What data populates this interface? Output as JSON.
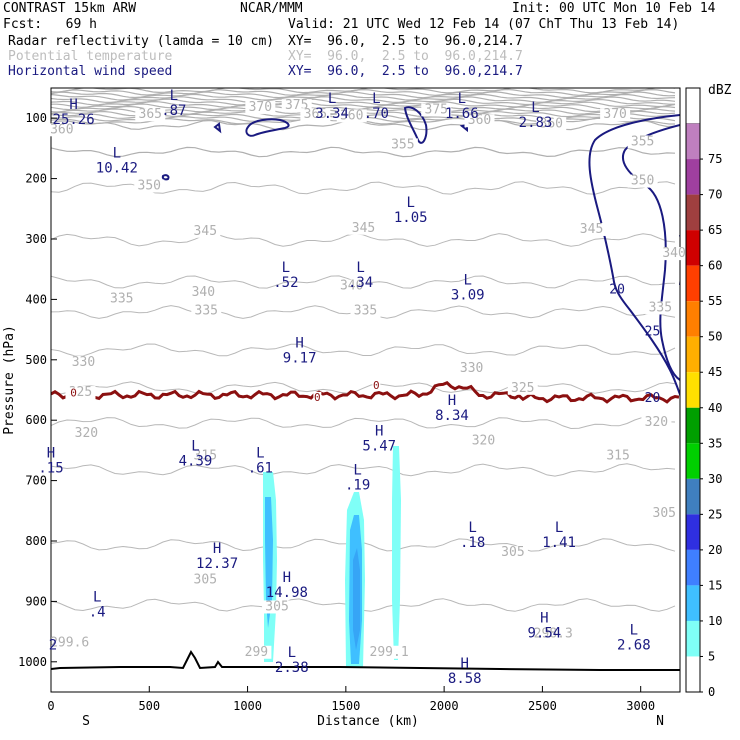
{
  "header": {
    "model": "CONTRAST 15km ARW",
    "org": "NCAR/MMM",
    "init": "Init: 00 UTC Mon 10 Feb 14",
    "fcst": "Fcst:   69 h",
    "valid": "Valid: 21 UTC Wed 12 Feb 14 (07 ChT Thu 13 Feb 14)",
    "fields": [
      {
        "name": "Radar reflectivity (lamda = 10 cm)",
        "xy": "XY=  96.0,  2.5 to  96.0,214.7",
        "color": "#000000"
      },
      {
        "name": "Potential temperature",
        "xy": "XY=  96.0,  2.5 to  96.0,214.7",
        "color": "#bdbdbd"
      },
      {
        "name": "Horizontal wind speed",
        "xy": "XY=  96.0,  2.5 to  96.0,214.7",
        "color": "#1a1a80"
      }
    ]
  },
  "chart_data": {
    "type": "cross-section",
    "xlabel": "Distance (km)",
    "ylabel": "Pressure (hPa)",
    "xlim": [
      0,
      3200
    ],
    "ylim": [
      50,
      1050
    ],
    "xticks": [
      0,
      500,
      1000,
      1500,
      2000,
      2500,
      3000
    ],
    "yticks": [
      100,
      200,
      300,
      400,
      500,
      600,
      700,
      800,
      900,
      1000
    ],
    "x_end_labels": {
      "left": "S",
      "right": "N"
    },
    "colorbar": {
      "title": "dBZ",
      "levels": [
        0,
        5,
        10,
        15,
        20,
        25,
        30,
        35,
        40,
        45,
        50,
        55,
        60,
        65,
        70,
        75
      ],
      "colors": [
        "#ffffff",
        "#7ffff7",
        "#3fbfff",
        "#3f7fff",
        "#2f2fe0",
        "#3f7fbf",
        "#00cf00",
        "#009f00",
        "#ffdf00",
        "#ffaf00",
        "#ff7f00",
        "#ff3f00",
        "#cf0000",
        "#9f3f3f",
        "#9f3f9f",
        "#bf7fbf"
      ]
    },
    "theta_labels": [
      {
        "x": 55,
        "p": 125,
        "t": "360"
      },
      {
        "x": 505,
        "p": 100,
        "t": "365"
      },
      {
        "x": 1065,
        "p": 88,
        "t": "370"
      },
      {
        "x": 1250,
        "p": 85,
        "t": "375"
      },
      {
        "x": 1345,
        "p": 100,
        "t": "365"
      },
      {
        "x": 1530,
        "p": 102,
        "t": "360"
      },
      {
        "x": 1960,
        "p": 92,
        "t": "375"
      },
      {
        "x": 2180,
        "p": 110,
        "t": "360"
      },
      {
        "x": 2545,
        "p": 115,
        "t": "360"
      },
      {
        "x": 2870,
        "p": 100,
        "t": "370"
      },
      {
        "x": 1790,
        "p": 150,
        "t": "355"
      },
      {
        "x": 3010,
        "p": 145,
        "t": "355"
      },
      {
        "x": 500,
        "p": 218,
        "t": "350"
      },
      {
        "x": 3010,
        "p": 210,
        "t": "350"
      },
      {
        "x": 785,
        "p": 293,
        "t": "345"
      },
      {
        "x": 1590,
        "p": 288,
        "t": "345"
      },
      {
        "x": 2750,
        "p": 290,
        "t": "345"
      },
      {
        "x": 3170,
        "p": 330,
        "t": "340"
      },
      {
        "x": 775,
        "p": 394,
        "t": "340"
      },
      {
        "x": 1530,
        "p": 384,
        "t": "340"
      },
      {
        "x": 360,
        "p": 405,
        "t": "335"
      },
      {
        "x": 790,
        "p": 425,
        "t": "335"
      },
      {
        "x": 1600,
        "p": 425,
        "t": "335"
      },
      {
        "x": 3100,
        "p": 420,
        "t": "335"
      },
      {
        "x": 165,
        "p": 510,
        "t": "330"
      },
      {
        "x": 2140,
        "p": 520,
        "t": "330"
      },
      {
        "x": 150,
        "p": 560,
        "t": "325"
      },
      {
        "x": 2400,
        "p": 553,
        "t": "325"
      },
      {
        "x": 180,
        "p": 628,
        "t": "320"
      },
      {
        "x": 2200,
        "p": 640,
        "t": "320"
      },
      {
        "x": 3080,
        "p": 610,
        "t": "320"
      },
      {
        "x": 785,
        "p": 665,
        "t": "315"
      },
      {
        "x": 2885,
        "p": 665,
        "t": "315"
      },
      {
        "x": 3120,
        "p": 760,
        "t": "305"
      },
      {
        "x": 2350,
        "p": 825,
        "t": "305"
      },
      {
        "x": 785,
        "p": 870,
        "t": "305"
      },
      {
        "x": 1150,
        "p": 915,
        "t": "305"
      },
      {
        "x": 95,
        "p": 975,
        "t": "299.6"
      },
      {
        "x": 1045,
        "p": 990,
        "t": "299"
      },
      {
        "x": 1720,
        "p": 990,
        "t": "299.1"
      },
      {
        "x": 2555,
        "p": 960,
        "t": "298.3"
      }
    ],
    "wind_labels": [
      {
        "x": 2880,
        "p": 390,
        "t": "20"
      },
      {
        "x": 3060,
        "p": 460,
        "t": "25"
      },
      {
        "x": 3060,
        "p": 570,
        "t": "20"
      }
    ],
    "freezing_labels": [
      {
        "x": 115,
        "p": 561,
        "t": "0"
      },
      {
        "x": 1355,
        "p": 568,
        "t": "0"
      },
      {
        "x": 1655,
        "p": 548,
        "t": "0"
      }
    ],
    "extrema": [
      {
        "x": 115,
        "p": 85,
        "kind": "H",
        "value": "25.26"
      },
      {
        "x": 625,
        "p": 70,
        "kind": "L",
        "value": ".87"
      },
      {
        "x": 1430,
        "p": 75,
        "kind": "L",
        "value": "3.34"
      },
      {
        "x": 1655,
        "p": 75,
        "kind": "L",
        "value": ".70"
      },
      {
        "x": 2090,
        "p": 75,
        "kind": "L",
        "value": "1.66"
      },
      {
        "x": 2465,
        "p": 90,
        "kind": "L",
        "value": "2.83"
      },
      {
        "x": 335,
        "p": 165,
        "kind": "L",
        "value": "10.42"
      },
      {
        "x": 1830,
        "p": 247,
        "kind": "L",
        "value": "1.05"
      },
      {
        "x": 1195,
        "p": 355,
        "kind": "L",
        "value": ".52"
      },
      {
        "x": 1575,
        "p": 355,
        "kind": "L",
        "value": ".34"
      },
      {
        "x": 2120,
        "p": 375,
        "kind": "L",
        "value": "3.09"
      },
      {
        "x": 1265,
        "p": 480,
        "kind": "H",
        "value": "9.17"
      },
      {
        "x": 2040,
        "p": 575,
        "kind": "H",
        "value": "8.34"
      },
      {
        "x": 1670,
        "p": 625,
        "kind": "H",
        "value": "5.47"
      },
      {
        "x": 0,
        "p": 662,
        "kind": "H",
        "value": ".15"
      },
      {
        "x": 735,
        "p": 650,
        "kind": "L",
        "value": "4.39"
      },
      {
        "x": 1065,
        "p": 662,
        "kind": "L",
        "value": ".61"
      },
      {
        "x": 1560,
        "p": 690,
        "kind": "L",
        "value": ".19"
      },
      {
        "x": 2145,
        "p": 785,
        "kind": "L",
        "value": ".18"
      },
      {
        "x": 2585,
        "p": 785,
        "kind": "L",
        "value": "1.41"
      },
      {
        "x": 845,
        "p": 820,
        "kind": "H",
        "value": "12.37"
      },
      {
        "x": 1200,
        "p": 868,
        "kind": "H",
        "value": "14.98"
      },
      {
        "x": 235,
        "p": 900,
        "kind": "L",
        "value": ".4"
      },
      {
        "x": 2510,
        "p": 935,
        "kind": "H",
        "value": "9.54"
      },
      {
        "x": 2965,
        "p": 955,
        "kind": "L",
        "value": "2.68"
      },
      {
        "x": 1225,
        "p": 992,
        "kind": "L",
        "value": "2.38"
      },
      {
        "x": 2105,
        "p": 1010,
        "kind": "H",
        "value": "8.58"
      },
      {
        "x": 10,
        "p": 980,
        "kind": "",
        "value": "2"
      }
    ]
  }
}
